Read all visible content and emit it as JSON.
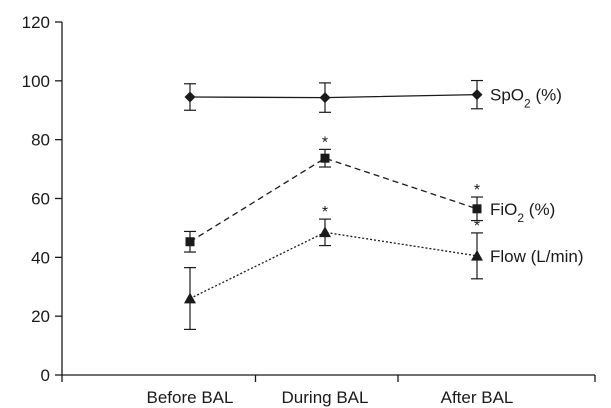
{
  "chart_data": {
    "type": "line",
    "categories": [
      "Before BAL",
      "During BAL",
      "After BAL"
    ],
    "ylim": [
      0,
      120
    ],
    "yticks": [
      0,
      20,
      40,
      60,
      80,
      100,
      120
    ],
    "grid": false,
    "legend": "none; series labeled at right end of each line",
    "series": [
      {
        "key": "spo2",
        "label_main": "SpO",
        "label_sub": "2",
        "label_tail": " (%)",
        "marker": "diamond",
        "line_style": "solid",
        "values": [
          94.5,
          94.3,
          95.3
        ],
        "error": [
          4.5,
          5.0,
          4.8
        ],
        "significant": [
          false,
          false,
          false
        ]
      },
      {
        "key": "fio2",
        "label_main": "FiO",
        "label_sub": "2",
        "label_tail": " (%)",
        "marker": "square",
        "line_style": "dashed",
        "values": [
          45.3,
          73.7,
          56.5
        ],
        "error": [
          3.5,
          3.0,
          4.0
        ],
        "significant": [
          false,
          true,
          true
        ]
      },
      {
        "key": "flow",
        "label_main": "Flow (L/min)",
        "label_sub": "",
        "label_tail": "",
        "marker": "triangle",
        "line_style": "dotted",
        "values": [
          26.0,
          48.5,
          40.5
        ],
        "error": [
          10.5,
          4.5,
          7.8
        ],
        "significant": [
          false,
          true,
          true
        ]
      }
    ],
    "significance_symbol": "*",
    "color": "#1a1a1a"
  }
}
